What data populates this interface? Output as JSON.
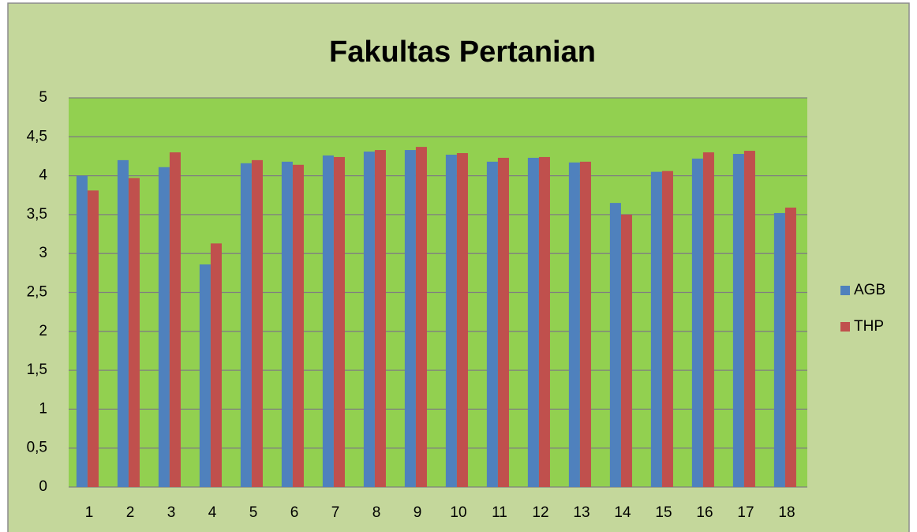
{
  "chart_data": {
    "type": "bar",
    "title": "Fakultas Pertanian",
    "categories": [
      "1",
      "2",
      "3",
      "4",
      "5",
      "6",
      "7",
      "8",
      "9",
      "10",
      "11",
      "12",
      "13",
      "14",
      "15",
      "16",
      "17",
      "18"
    ],
    "series": [
      {
        "name": "AGB",
        "color": "#4f81bd",
        "values": [
          4.0,
          4.2,
          4.11,
          2.86,
          4.16,
          4.18,
          4.26,
          4.31,
          4.33,
          4.27,
          4.18,
          4.23,
          4.17,
          3.65,
          4.05,
          4.22,
          4.28,
          3.52
        ]
      },
      {
        "name": "THP",
        "color": "#c0504d",
        "values": [
          3.81,
          3.97,
          4.3,
          3.13,
          4.2,
          4.14,
          4.24,
          4.33,
          4.37,
          4.29,
          4.23,
          4.24,
          4.18,
          3.5,
          4.06,
          4.3,
          4.32,
          3.59
        ]
      }
    ],
    "ylim": [
      0,
      5
    ],
    "yticks": [
      0,
      {
        "value": 0.5,
        "label": "0,5"
      },
      1,
      {
        "value": 1.5,
        "label": "1,5"
      },
      2,
      {
        "value": 2.5,
        "label": "2,5"
      },
      3,
      {
        "value": 3.5,
        "label": "3,5"
      },
      4,
      {
        "value": 4.5,
        "label": "4,5"
      },
      5
    ],
    "grid": true,
    "legend": "right"
  }
}
